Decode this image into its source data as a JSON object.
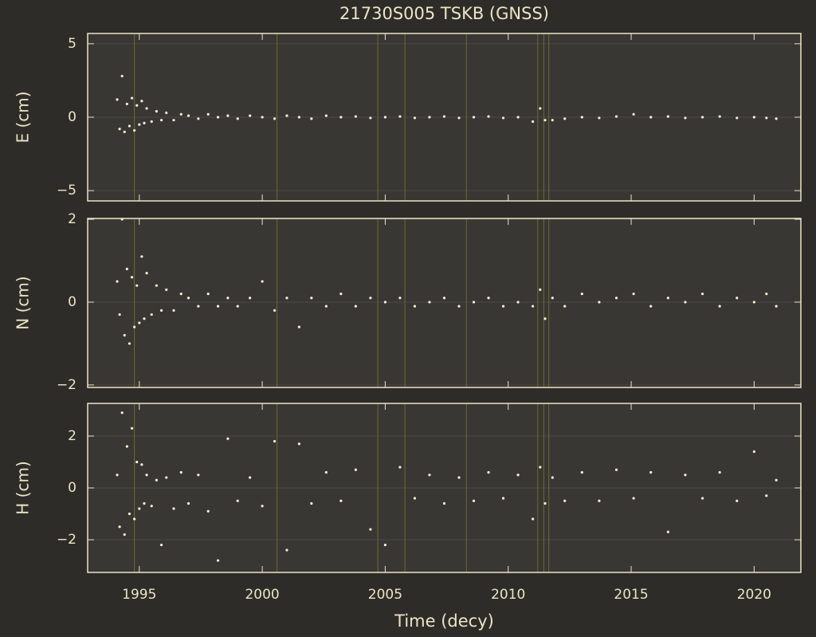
{
  "chart_data": [
    {
      "type": "scatter",
      "title": "21730S005 TSKB (GNSS)",
      "y_label": "E (cm)",
      "color": "#f5f0d2",
      "event_color": "#6b6b2e",
      "xlim": [
        1992.9,
        2021.9
      ],
      "xticks": [
        1995,
        2000,
        2005,
        2010,
        2015,
        2020
      ],
      "ylim": [
        -5.7,
        5.7
      ],
      "yticks": [
        {
          "value": -5,
          "label": "−5"
        },
        0,
        5
      ],
      "grid": true,
      "events": [
        1994.8,
        2000.6,
        2004.7,
        2005.8,
        2008.3,
        2011.2,
        2011.45,
        2011.65
      ],
      "x": [
        1994.1,
        1994.2,
        1994.3,
        1994.4,
        1994.5,
        1994.6,
        1994.7,
        1994.8,
        1994.9,
        1995.0,
        1995.1,
        1995.2,
        1995.3,
        1995.5,
        1995.7,
        1995.9,
        1996.1,
        1996.4,
        1996.7,
        1997.0,
        1997.4,
        1997.8,
        1998.2,
        1998.6,
        1999.0,
        1999.5,
        2000.0,
        2000.5,
        2001.0,
        2001.5,
        2002.0,
        2002.6,
        2003.2,
        2003.8,
        2004.4,
        2005.0,
        2005.6,
        2006.2,
        2006.8,
        2007.4,
        2008.0,
        2008.6,
        2009.2,
        2009.8,
        2010.4,
        2011.0,
        2011.3,
        2011.5,
        2011.8,
        2012.3,
        2013.0,
        2013.7,
        2014.4,
        2015.1,
        2015.8,
        2016.5,
        2017.2,
        2017.9,
        2018.6,
        2019.3,
        2020.0,
        2020.5,
        2020.9
      ],
      "values": [
        1.2,
        -0.8,
        2.8,
        -1.0,
        0.9,
        -0.6,
        1.3,
        -0.9,
        0.8,
        -0.5,
        1.1,
        -0.4,
        0.6,
        -0.3,
        0.4,
        -0.2,
        0.3,
        -0.2,
        0.2,
        0.1,
        -0.1,
        0.2,
        0,
        0.1,
        -0.1,
        0.1,
        0,
        -0.1,
        0.1,
        0,
        -0.1,
        0.1,
        0,
        0.05,
        -0.05,
        0,
        0.05,
        -0.05,
        0,
        0.05,
        -0.05,
        0,
        0.05,
        -0.05,
        0,
        -0.3,
        0.6,
        -0.2,
        -0.2,
        -0.1,
        0,
        -0.05,
        0.05,
        0.2,
        0,
        0.05,
        -0.05,
        0,
        0.05,
        -0.05,
        0,
        -0.05,
        -0.1
      ]
    },
    {
      "type": "scatter",
      "y_label": "N (cm)",
      "color": "#f5f0d2",
      "event_color": "#6b6b2e",
      "xlim": [
        1992.9,
        2021.9
      ],
      "xticks": [
        1995,
        2000,
        2005,
        2010,
        2015,
        2020
      ],
      "ylim": [
        -2.06,
        2.02
      ],
      "yticks": [
        {
          "value": -2,
          "label": "−2"
        },
        0,
        2
      ],
      "grid": true,
      "events": [
        1994.8,
        2000.6,
        2004.7,
        2005.8,
        2008.3,
        2011.2,
        2011.45,
        2011.65
      ],
      "x": [
        1994.1,
        1994.2,
        1994.3,
        1994.4,
        1994.5,
        1994.6,
        1994.7,
        1994.8,
        1994.9,
        1995.0,
        1995.1,
        1995.2,
        1995.3,
        1995.5,
        1995.7,
        1995.9,
        1996.1,
        1996.4,
        1996.7,
        1997.0,
        1997.4,
        1997.8,
        1998.2,
        1998.6,
        1999.0,
        1999.5,
        2000.0,
        2000.5,
        2001.0,
        2001.5,
        2002.0,
        2002.6,
        2003.2,
        2003.8,
        2004.4,
        2005.0,
        2005.6,
        2006.2,
        2006.8,
        2007.4,
        2008.0,
        2008.6,
        2009.2,
        2009.8,
        2010.4,
        2011.0,
        2011.3,
        2011.5,
        2011.8,
        2012.3,
        2013.0,
        2013.7,
        2014.4,
        2015.1,
        2015.8,
        2016.5,
        2017.2,
        2017.9,
        2018.6,
        2019.3,
        2020.0,
        2020.5,
        2020.9
      ],
      "values": [
        0.5,
        -0.3,
        2.0,
        -0.8,
        0.8,
        -1.0,
        0.6,
        -0.6,
        0.4,
        -0.5,
        1.1,
        -0.4,
        0.7,
        -0.3,
        0.4,
        -0.2,
        0.3,
        -0.2,
        0.2,
        0.1,
        -0.1,
        0.2,
        -0.1,
        0.1,
        -0.1,
        0.1,
        0.5,
        -0.2,
        0.1,
        -0.6,
        0.1,
        -0.1,
        0.2,
        -0.1,
        0.1,
        0,
        0.1,
        -0.1,
        0,
        0.1,
        -0.1,
        0,
        0.1,
        -0.1,
        0,
        -0.1,
        0.3,
        -0.4,
        0.1,
        -0.1,
        0.2,
        0,
        0.1,
        0.2,
        -0.1,
        0.1,
        0,
        0.2,
        -0.1,
        0.1,
        0,
        0.2,
        -0.1
      ]
    },
    {
      "type": "scatter",
      "y_label": "H (cm)",
      "x_label": "Time (decy)",
      "color": "#f5f0d2",
      "event_color": "#6b6b2e",
      "xlim": [
        1992.9,
        2021.9
      ],
      "xticks": [
        1995,
        2000,
        2005,
        2010,
        2015,
        2020
      ],
      "ylim": [
        -3.26,
        3.26
      ],
      "yticks": [
        {
          "value": -2,
          "label": "−2"
        },
        0,
        2
      ],
      "grid": true,
      "events": [
        1994.8,
        2000.6,
        2004.7,
        2005.8,
        2008.3,
        2011.2,
        2011.45,
        2011.65
      ],
      "x": [
        1994.1,
        1994.2,
        1994.3,
        1994.4,
        1994.5,
        1994.6,
        1994.7,
        1994.8,
        1994.9,
        1995.0,
        1995.1,
        1995.2,
        1995.3,
        1995.5,
        1995.7,
        1995.9,
        1996.1,
        1996.4,
        1996.7,
        1997.0,
        1997.4,
        1997.8,
        1998.2,
        1998.6,
        1999.0,
        1999.5,
        2000.0,
        2000.5,
        2001.0,
        2001.5,
        2002.0,
        2002.6,
        2003.2,
        2003.8,
        2004.4,
        2005.0,
        2005.6,
        2006.2,
        2006.8,
        2007.4,
        2008.0,
        2008.6,
        2009.2,
        2009.8,
        2010.4,
        2011.0,
        2011.3,
        2011.5,
        2011.8,
        2012.3,
        2013.0,
        2013.7,
        2014.4,
        2015.1,
        2015.8,
        2016.5,
        2017.2,
        2017.9,
        2018.6,
        2019.3,
        2020.0,
        2020.5,
        2020.9
      ],
      "values": [
        0.5,
        -1.5,
        2.9,
        -1.8,
        1.6,
        -1.0,
        2.3,
        -1.2,
        1.0,
        -0.8,
        0.9,
        -0.6,
        0.5,
        -0.7,
        0.3,
        -2.2,
        0.4,
        -0.8,
        0.6,
        -0.6,
        0.5,
        -0.9,
        -2.8,
        1.9,
        -0.5,
        0.4,
        -0.7,
        1.8,
        -2.4,
        1.7,
        -0.6,
        0.6,
        -0.5,
        0.7,
        -1.6,
        -2.2,
        0.8,
        -0.4,
        0.5,
        -0.6,
        0.4,
        -0.5,
        0.6,
        -0.4,
        0.5,
        -1.2,
        0.8,
        -0.6,
        0.4,
        -0.5,
        0.6,
        -0.5,
        0.7,
        -0.4,
        0.6,
        -1.7,
        0.5,
        -0.4,
        0.6,
        -0.5,
        1.4,
        -0.3,
        0.3
      ]
    }
  ]
}
